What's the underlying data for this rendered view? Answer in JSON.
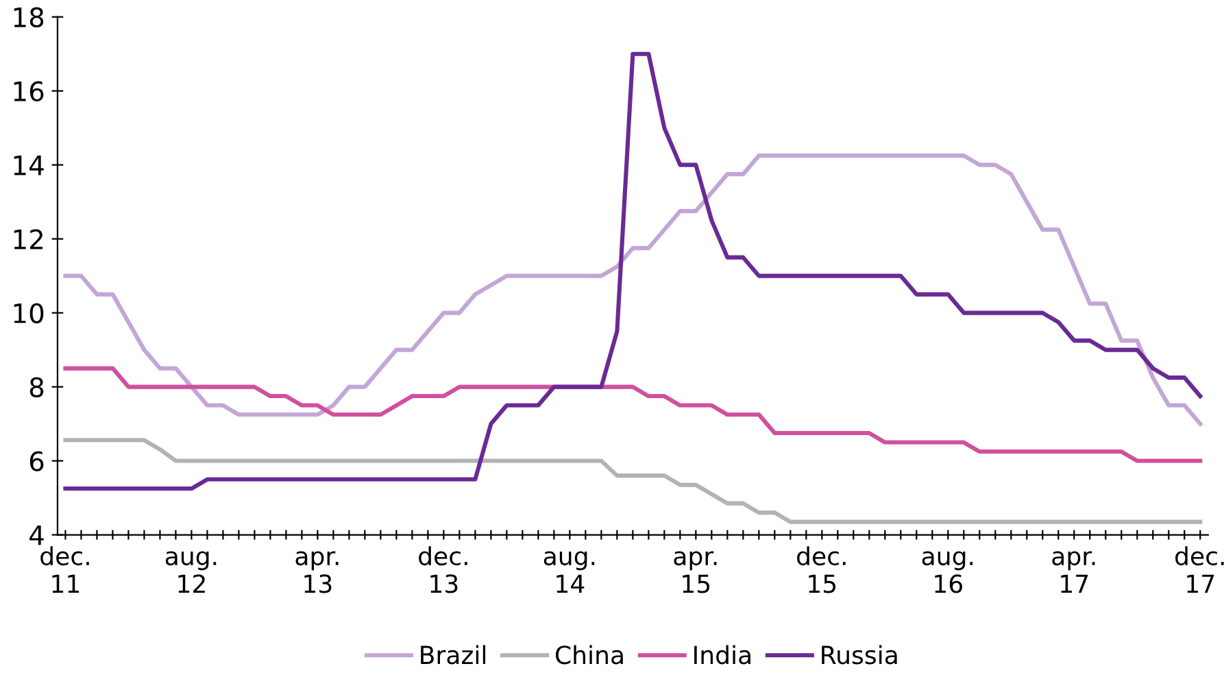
{
  "chart_data": {
    "type": "line",
    "categories": [
      "dec.\n11",
      null,
      null,
      null,
      null,
      null,
      null,
      null,
      "aug.\n12",
      null,
      null,
      null,
      null,
      null,
      null,
      null,
      "apr.\n13",
      null,
      null,
      null,
      null,
      null,
      null,
      null,
      "dec.\n13",
      null,
      null,
      null,
      null,
      null,
      null,
      null,
      "aug.\n14",
      null,
      null,
      null,
      null,
      null,
      null,
      null,
      "apr.\n15",
      null,
      null,
      null,
      null,
      null,
      null,
      null,
      "dec.\n15",
      null,
      null,
      null,
      null,
      null,
      null,
      null,
      "aug.\n16",
      null,
      null,
      null,
      null,
      null,
      null,
      null,
      "apr.\n17",
      null,
      null,
      null,
      null,
      null,
      null,
      null,
      "dec.\n17"
    ],
    "series": [
      {
        "name": "Brazil",
        "color": "#c3a6d6",
        "values": [
          11.0,
          11.0,
          10.5,
          10.5,
          9.75,
          9.0,
          8.5,
          8.5,
          8.0,
          7.5,
          7.5,
          7.25,
          7.25,
          7.25,
          7.25,
          7.25,
          7.25,
          7.5,
          8.0,
          8.0,
          8.5,
          9.0,
          9.0,
          9.5,
          10.0,
          10.0,
          10.5,
          10.75,
          11.0,
          11.0,
          11.0,
          11.0,
          11.0,
          11.0,
          11.0,
          11.25,
          11.75,
          11.75,
          12.25,
          12.75,
          12.75,
          13.25,
          13.75,
          13.75,
          14.25,
          14.25,
          14.25,
          14.25,
          14.25,
          14.25,
          14.25,
          14.25,
          14.25,
          14.25,
          14.25,
          14.25,
          14.25,
          14.25,
          14.0,
          14.0,
          13.75,
          13.0,
          12.25,
          12.25,
          11.25,
          10.25,
          10.25,
          9.25,
          9.25,
          8.25,
          7.5,
          7.5,
          7.0
        ]
      },
      {
        "name": "China",
        "color": "#b3b3b3",
        "values": [
          6.56,
          6.56,
          6.56,
          6.56,
          6.56,
          6.56,
          6.31,
          6.0,
          6.0,
          6.0,
          6.0,
          6.0,
          6.0,
          6.0,
          6.0,
          6.0,
          6.0,
          6.0,
          6.0,
          6.0,
          6.0,
          6.0,
          6.0,
          6.0,
          6.0,
          6.0,
          6.0,
          6.0,
          6.0,
          6.0,
          6.0,
          6.0,
          6.0,
          6.0,
          6.0,
          5.6,
          5.6,
          5.6,
          5.6,
          5.35,
          5.35,
          5.1,
          4.85,
          4.85,
          4.6,
          4.6,
          4.35,
          4.35,
          4.35,
          4.35,
          4.35,
          4.35,
          4.35,
          4.35,
          4.35,
          4.35,
          4.35,
          4.35,
          4.35,
          4.35,
          4.35,
          4.35,
          4.35,
          4.35,
          4.35,
          4.35,
          4.35,
          4.35,
          4.35,
          4.35,
          4.35,
          4.35,
          4.35
        ]
      },
      {
        "name": "India",
        "color": "#d0509f",
        "values": [
          8.5,
          8.5,
          8.5,
          8.5,
          8.0,
          8.0,
          8.0,
          8.0,
          8.0,
          8.0,
          8.0,
          8.0,
          8.0,
          7.75,
          7.75,
          7.5,
          7.5,
          7.25,
          7.25,
          7.25,
          7.25,
          7.5,
          7.75,
          7.75,
          7.75,
          8.0,
          8.0,
          8.0,
          8.0,
          8.0,
          8.0,
          8.0,
          8.0,
          8.0,
          8.0,
          8.0,
          8.0,
          7.75,
          7.75,
          7.5,
          7.5,
          7.5,
          7.25,
          7.25,
          7.25,
          6.75,
          6.75,
          6.75,
          6.75,
          6.75,
          6.75,
          6.75,
          6.5,
          6.5,
          6.5,
          6.5,
          6.5,
          6.5,
          6.25,
          6.25,
          6.25,
          6.25,
          6.25,
          6.25,
          6.25,
          6.25,
          6.25,
          6.25,
          6.0,
          6.0,
          6.0,
          6.0,
          6.0
        ]
      },
      {
        "name": "Russia",
        "color": "#6a2a94",
        "values": [
          5.25,
          5.25,
          5.25,
          5.25,
          5.25,
          5.25,
          5.25,
          5.25,
          5.25,
          5.5,
          5.5,
          5.5,
          5.5,
          5.5,
          5.5,
          5.5,
          5.5,
          5.5,
          5.5,
          5.5,
          5.5,
          5.5,
          5.5,
          5.5,
          5.5,
          5.5,
          5.5,
          7.0,
          7.5,
          7.5,
          7.5,
          8.0,
          8.0,
          8.0,
          8.0,
          9.5,
          17.0,
          17.0,
          15.0,
          14.0,
          14.0,
          12.5,
          11.5,
          11.5,
          11.0,
          11.0,
          11.0,
          11.0,
          11.0,
          11.0,
          11.0,
          11.0,
          11.0,
          11.0,
          10.5,
          10.5,
          10.5,
          10.0,
          10.0,
          10.0,
          10.0,
          10.0,
          10.0,
          9.75,
          9.25,
          9.25,
          9.0,
          9.0,
          9.0,
          8.5,
          8.25,
          8.25,
          7.75
        ]
      }
    ],
    "ylim": [
      4,
      18
    ],
    "yticks": [
      4,
      6,
      8,
      10,
      12,
      14,
      16,
      18
    ],
    "legend": "bottom",
    "line_style": "solid",
    "marker": "none"
  }
}
